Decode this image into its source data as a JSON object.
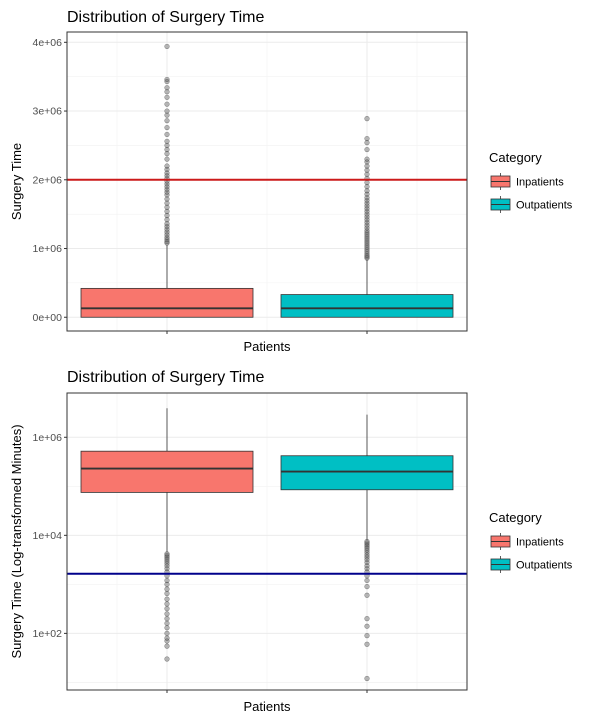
{
  "chart_data": [
    {
      "type": "boxplot",
      "title": "Distribution of Surgery Time",
      "xlabel": "Patients",
      "ylabel": "Surgery Time",
      "yscale": "linear",
      "ylim": [
        -200000,
        4150000
      ],
      "yticks": [
        0,
        1000000,
        2000000,
        3000000,
        4000000
      ],
      "ytick_labels": [
        "0e+00",
        "1e+06",
        "2e+06",
        "3e+06",
        "4e+06"
      ],
      "legend": {
        "title": "Category",
        "position": "right",
        "entries": [
          "Inpatients",
          "Outpatients"
        ]
      },
      "grid": true,
      "reference_line": {
        "y": 2000000,
        "color": "#cc1a1a"
      },
      "series": [
        {
          "name": "Inpatients",
          "color": "#f8766d",
          "q1": 0,
          "median": 130000,
          "q3": 420000,
          "whisker_low": 0,
          "whisker_high": 1050000,
          "outliers": [
            1080000,
            1100000,
            1130000,
            1160000,
            1200000,
            1240000,
            1280000,
            1320000,
            1360000,
            1420000,
            1480000,
            1540000,
            1600000,
            1660000,
            1720000,
            1780000,
            1820000,
            1860000,
            1900000,
            1940000,
            1980000,
            2020000,
            2060000,
            2100000,
            2150000,
            2200000,
            2300000,
            2380000,
            2440000,
            2500000,
            2560000,
            2660000,
            2760000,
            2860000,
            2940000,
            3000000,
            3100000,
            3200000,
            3280000,
            3340000,
            3430000,
            3460000,
            3940000
          ]
        },
        {
          "name": "Outpatients",
          "color": "#00bfc4",
          "q1": 0,
          "median": 130000,
          "q3": 330000,
          "whisker_low": 0,
          "whisker_high": 840000,
          "outliers": [
            860000,
            880000,
            900000,
            930000,
            960000,
            990000,
            1020000,
            1050000,
            1080000,
            1110000,
            1140000,
            1170000,
            1200000,
            1230000,
            1260000,
            1300000,
            1340000,
            1380000,
            1420000,
            1460000,
            1500000,
            1540000,
            1580000,
            1620000,
            1660000,
            1700000,
            1740000,
            1790000,
            1840000,
            1900000,
            1960000,
            2020000,
            2080000,
            2140000,
            2200000,
            2260000,
            2300000,
            2440000,
            2540000,
            2600000,
            2890000
          ]
        }
      ]
    },
    {
      "type": "boxplot",
      "title": "Distribution of Surgery Time",
      "xlabel": "Patients",
      "ylabel": "Surgery Time (Log-transformed Minutes)",
      "yscale": "log10",
      "ylim": [
        7,
        8000000
      ],
      "yticks": [
        100,
        10000,
        1000000
      ],
      "ytick_labels": [
        "1e+02",
        "1e+04",
        "1e+06"
      ],
      "legend": {
        "title": "Category",
        "position": "right",
        "entries": [
          "Inpatients",
          "Outpatients"
        ]
      },
      "grid": true,
      "reference_line": {
        "y": 1650,
        "color": "#00008b"
      },
      "series": [
        {
          "name": "Inpatients",
          "color": "#f8766d",
          "q1": 75000,
          "median": 230000,
          "q3": 520000,
          "whisker_low": 4500,
          "whisker_high": 3900000,
          "outliers": [
            30,
            55,
            70,
            80,
            100,
            130,
            160,
            200,
            250,
            320,
            400,
            500,
            650,
            800,
            1000,
            1200,
            1500,
            1800,
            2100,
            2400,
            2700,
            3000,
            3300,
            3600,
            3900,
            4200
          ]
        },
        {
          "name": "Outpatients",
          "color": "#00bfc4",
          "q1": 85000,
          "median": 200000,
          "q3": 420000,
          "whisker_low": 8000,
          "whisker_high": 2900000,
          "outliers": [
            12,
            60,
            90,
            140,
            200,
            600,
            900,
            1200,
            1500,
            1800,
            2100,
            2400,
            2800,
            3200,
            3600,
            4000,
            4500,
            5000,
            5500,
            6000,
            6500,
            7000,
            7500
          ]
        }
      ]
    }
  ]
}
